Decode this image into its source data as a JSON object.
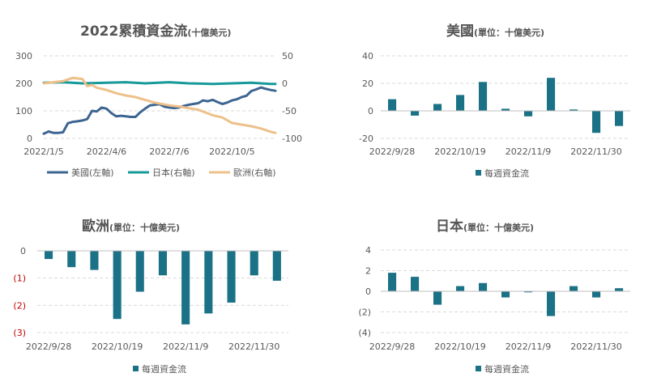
{
  "colors": {
    "us": "#3d6591",
    "japan": "#17999a",
    "europe": "#eec08a",
    "bar": "#1b7287",
    "grid": "#d9d9d9",
    "negative_label": "#c00000"
  },
  "chart_data": [
    {
      "id": "cumulative",
      "type": "line",
      "title": "2022累積資金流",
      "subtitle": "(十億美元)",
      "x_tick_labels": [
        "2022/1/5",
        "2022/4/6",
        "2022/7/6",
        "2022/10/5"
      ],
      "left_axis": {
        "ticks": [
          "0",
          "100",
          "200",
          "300"
        ],
        "ylim": [
          0,
          300
        ]
      },
      "right_axis": {
        "ticks": [
          "50",
          "0",
          "-50",
          "-100"
        ],
        "ylim": [
          -100,
          50
        ]
      },
      "legend_position": "bottom",
      "series": [
        {
          "name": "美國(左軸)",
          "axis": "left",
          "color": "#3d6591",
          "x": [
            "2022/1/5",
            "2022/1/12",
            "2022/1/19",
            "2022/1/26",
            "2022/2/2",
            "2022/2/9",
            "2022/2/16",
            "2022/2/23",
            "2022/3/2",
            "2022/3/9",
            "2022/3/16",
            "2022/3/23",
            "2022/3/30",
            "2022/4/6",
            "2022/4/13",
            "2022/4/20",
            "2022/4/27",
            "2022/5/4",
            "2022/5/11",
            "2022/5/18",
            "2022/5/25",
            "2022/6/1",
            "2022/6/8",
            "2022/6/15",
            "2022/6/22",
            "2022/6/29",
            "2022/7/6",
            "2022/7/13",
            "2022/7/20",
            "2022/7/27",
            "2022/8/3",
            "2022/8/10",
            "2022/8/17",
            "2022/8/24",
            "2022/8/31",
            "2022/9/7",
            "2022/9/14",
            "2022/9/21",
            "2022/9/28",
            "2022/10/5",
            "2022/10/12",
            "2022/10/19",
            "2022/10/26",
            "2022/11/2",
            "2022/11/9",
            "2022/11/16",
            "2022/11/23",
            "2022/11/30",
            "2022/12/7"
          ],
          "values": [
            17,
            25,
            20,
            20,
            22,
            55,
            60,
            62,
            65,
            70,
            100,
            98,
            112,
            108,
            92,
            80,
            82,
            80,
            78,
            78,
            95,
            108,
            120,
            122,
            124,
            115,
            112,
            110,
            112,
            118,
            122,
            125,
            128,
            138,
            135,
            140,
            132,
            125,
            130,
            138,
            142,
            150,
            155,
            172,
            178,
            185,
            180,
            176,
            173
          ]
        },
        {
          "name": "日本(右軸)",
          "axis": "right",
          "color": "#17999a",
          "x": [
            "2022/1/5",
            "2022/2/2",
            "2022/3/2",
            "2022/4/6",
            "2022/5/4",
            "2022/6/1",
            "2022/7/6",
            "2022/8/3",
            "2022/9/7",
            "2022/10/5",
            "2022/11/2",
            "2022/11/30",
            "2022/12/7"
          ],
          "values": [
            1,
            2,
            0,
            1,
            2,
            0,
            2,
            0,
            -1,
            0,
            1,
            -1,
            -1
          ]
        },
        {
          "name": "歐洲(右軸)",
          "axis": "right",
          "color": "#eec08a",
          "x": [
            "2022/1/5",
            "2022/1/19",
            "2022/2/2",
            "2022/2/16",
            "2022/3/2",
            "2022/3/9",
            "2022/3/16",
            "2022/3/23",
            "2022/4/6",
            "2022/4/20",
            "2022/5/4",
            "2022/5/18",
            "2022/6/1",
            "2022/6/15",
            "2022/7/6",
            "2022/7/20",
            "2022/8/3",
            "2022/8/17",
            "2022/9/7",
            "2022/9/21",
            "2022/10/5",
            "2022/10/19",
            "2022/11/2",
            "2022/11/16",
            "2022/11/30",
            "2022/12/7"
          ],
          "values": [
            0,
            2,
            4,
            10,
            8,
            -5,
            -3,
            -8,
            -12,
            -18,
            -22,
            -25,
            -30,
            -35,
            -40,
            -42,
            -45,
            -48,
            -58,
            -62,
            -72,
            -75,
            -78,
            -82,
            -88,
            -90
          ]
        }
      ]
    },
    {
      "id": "us_weekly",
      "type": "bar",
      "title": "美國",
      "subtitle": "(單位：十億美元)",
      "x_tick_labels": [
        "2022/9/28",
        "2022/10/19",
        "2022/11/9",
        "2022/11/30"
      ],
      "y_ticks": [
        "40",
        "20",
        "0",
        "-20"
      ],
      "ylim": [
        -20,
        40
      ],
      "categories": [
        "2022/9/28",
        "2022/10/5",
        "2022/10/12",
        "2022/10/19",
        "2022/10/26",
        "2022/11/2",
        "2022/11/9",
        "2022/11/16",
        "2022/11/23",
        "2022/11/30",
        "2022/12/7"
      ],
      "series": [
        {
          "name": "每週資金流",
          "values": [
            8.5,
            -3.5,
            5,
            11.5,
            21,
            1.5,
            -4,
            24,
            1,
            -16,
            -11
          ]
        }
      ],
      "legend_position": "bottom"
    },
    {
      "id": "europe_weekly",
      "type": "bar",
      "title": "歐洲",
      "subtitle": "(單位：十億美元)",
      "x_tick_labels": [
        "2022/9/28",
        "2022/10/19",
        "2022/11/9",
        "2022/11/30"
      ],
      "y_ticks": [
        "0",
        "(1)",
        "(2)",
        "(3)"
      ],
      "ylim": [
        -3,
        0
      ],
      "categories": [
        "2022/9/28",
        "2022/10/5",
        "2022/10/12",
        "2022/10/19",
        "2022/10/26",
        "2022/11/2",
        "2022/11/9",
        "2022/11/16",
        "2022/11/23",
        "2022/11/30",
        "2022/12/7"
      ],
      "series": [
        {
          "name": "每週資金流",
          "values": [
            -0.3,
            -0.6,
            -0.7,
            -2.5,
            -1.5,
            -0.9,
            -2.7,
            -2.3,
            -1.9,
            -0.9,
            -1.1
          ]
        }
      ],
      "legend_position": "bottom"
    },
    {
      "id": "japan_weekly",
      "type": "bar",
      "title": "日本",
      "subtitle": "(單位：十億美元)",
      "x_tick_labels": [
        "2022/9/28",
        "2022/10/19",
        "2022/11/9",
        "2022/11/30"
      ],
      "y_ticks": [
        "4",
        "2",
        "0",
        "(2)",
        "(4)"
      ],
      "ylim": [
        -4,
        4
      ],
      "categories": [
        "2022/9/28",
        "2022/10/5",
        "2022/10/12",
        "2022/10/19",
        "2022/10/26",
        "2022/11/2",
        "2022/11/9",
        "2022/11/16",
        "2022/11/23",
        "2022/11/30",
        "2022/12/7"
      ],
      "series": [
        {
          "name": "每週資金流",
          "values": [
            1.8,
            1.4,
            -1.3,
            0.5,
            0.8,
            -0.6,
            -0.1,
            -2.4,
            0.5,
            -0.6,
            0.3
          ]
        }
      ],
      "legend_position": "bottom"
    }
  ]
}
